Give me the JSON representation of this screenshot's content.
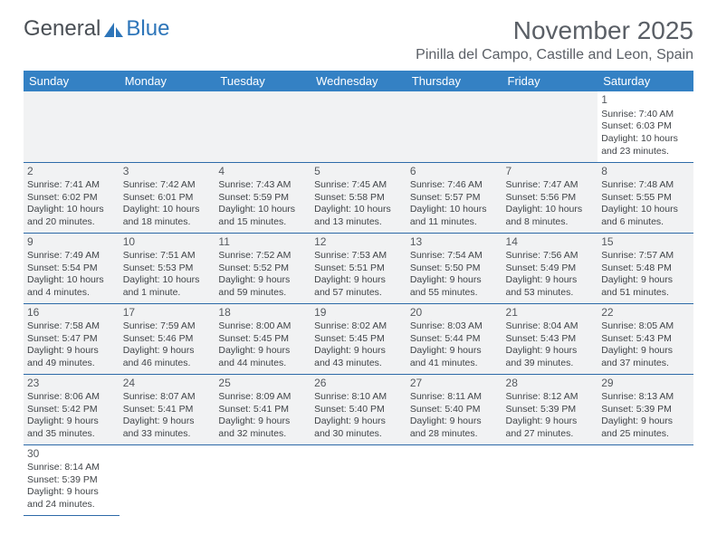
{
  "logo": {
    "part1": "General",
    "part2": "Blue"
  },
  "title": "November 2025",
  "location": "Pinilla del Campo, Castille and Leon, Spain",
  "header_bg": "#3481c4",
  "header_fg": "#ffffff",
  "rule_color": "#2d6aa8",
  "shade_color": "#f1f2f3",
  "daynames": [
    "Sunday",
    "Monday",
    "Tuesday",
    "Wednesday",
    "Thursday",
    "Friday",
    "Saturday"
  ],
  "weeks": [
    [
      null,
      null,
      null,
      null,
      null,
      null,
      {
        "n": "1",
        "sr": "7:40 AM",
        "ss": "6:03 PM",
        "dl": "10 hours and 23 minutes."
      }
    ],
    [
      {
        "n": "2",
        "sr": "7:41 AM",
        "ss": "6:02 PM",
        "dl": "10 hours and 20 minutes."
      },
      {
        "n": "3",
        "sr": "7:42 AM",
        "ss": "6:01 PM",
        "dl": "10 hours and 18 minutes."
      },
      {
        "n": "4",
        "sr": "7:43 AM",
        "ss": "5:59 PM",
        "dl": "10 hours and 15 minutes."
      },
      {
        "n": "5",
        "sr": "7:45 AM",
        "ss": "5:58 PM",
        "dl": "10 hours and 13 minutes."
      },
      {
        "n": "6",
        "sr": "7:46 AM",
        "ss": "5:57 PM",
        "dl": "10 hours and 11 minutes."
      },
      {
        "n": "7",
        "sr": "7:47 AM",
        "ss": "5:56 PM",
        "dl": "10 hours and 8 minutes."
      },
      {
        "n": "8",
        "sr": "7:48 AM",
        "ss": "5:55 PM",
        "dl": "10 hours and 6 minutes."
      }
    ],
    [
      {
        "n": "9",
        "sr": "7:49 AM",
        "ss": "5:54 PM",
        "dl": "10 hours and 4 minutes."
      },
      {
        "n": "10",
        "sr": "7:51 AM",
        "ss": "5:53 PM",
        "dl": "10 hours and 1 minute."
      },
      {
        "n": "11",
        "sr": "7:52 AM",
        "ss": "5:52 PM",
        "dl": "9 hours and 59 minutes."
      },
      {
        "n": "12",
        "sr": "7:53 AM",
        "ss": "5:51 PM",
        "dl": "9 hours and 57 minutes."
      },
      {
        "n": "13",
        "sr": "7:54 AM",
        "ss": "5:50 PM",
        "dl": "9 hours and 55 minutes."
      },
      {
        "n": "14",
        "sr": "7:56 AM",
        "ss": "5:49 PM",
        "dl": "9 hours and 53 minutes."
      },
      {
        "n": "15",
        "sr": "7:57 AM",
        "ss": "5:48 PM",
        "dl": "9 hours and 51 minutes."
      }
    ],
    [
      {
        "n": "16",
        "sr": "7:58 AM",
        "ss": "5:47 PM",
        "dl": "9 hours and 49 minutes."
      },
      {
        "n": "17",
        "sr": "7:59 AM",
        "ss": "5:46 PM",
        "dl": "9 hours and 46 minutes."
      },
      {
        "n": "18",
        "sr": "8:00 AM",
        "ss": "5:45 PM",
        "dl": "9 hours and 44 minutes."
      },
      {
        "n": "19",
        "sr": "8:02 AM",
        "ss": "5:45 PM",
        "dl": "9 hours and 43 minutes."
      },
      {
        "n": "20",
        "sr": "8:03 AM",
        "ss": "5:44 PM",
        "dl": "9 hours and 41 minutes."
      },
      {
        "n": "21",
        "sr": "8:04 AM",
        "ss": "5:43 PM",
        "dl": "9 hours and 39 minutes."
      },
      {
        "n": "22",
        "sr": "8:05 AM",
        "ss": "5:43 PM",
        "dl": "9 hours and 37 minutes."
      }
    ],
    [
      {
        "n": "23",
        "sr": "8:06 AM",
        "ss": "5:42 PM",
        "dl": "9 hours and 35 minutes."
      },
      {
        "n": "24",
        "sr": "8:07 AM",
        "ss": "5:41 PM",
        "dl": "9 hours and 33 minutes."
      },
      {
        "n": "25",
        "sr": "8:09 AM",
        "ss": "5:41 PM",
        "dl": "9 hours and 32 minutes."
      },
      {
        "n": "26",
        "sr": "8:10 AM",
        "ss": "5:40 PM",
        "dl": "9 hours and 30 minutes."
      },
      {
        "n": "27",
        "sr": "8:11 AM",
        "ss": "5:40 PM",
        "dl": "9 hours and 28 minutes."
      },
      {
        "n": "28",
        "sr": "8:12 AM",
        "ss": "5:39 PM",
        "dl": "9 hours and 27 minutes."
      },
      {
        "n": "29",
        "sr": "8:13 AM",
        "ss": "5:39 PM",
        "dl": "9 hours and 25 minutes."
      }
    ],
    [
      {
        "n": "30",
        "sr": "8:14 AM",
        "ss": "5:39 PM",
        "dl": "9 hours and 24 minutes."
      },
      null,
      null,
      null,
      null,
      null,
      null
    ]
  ]
}
